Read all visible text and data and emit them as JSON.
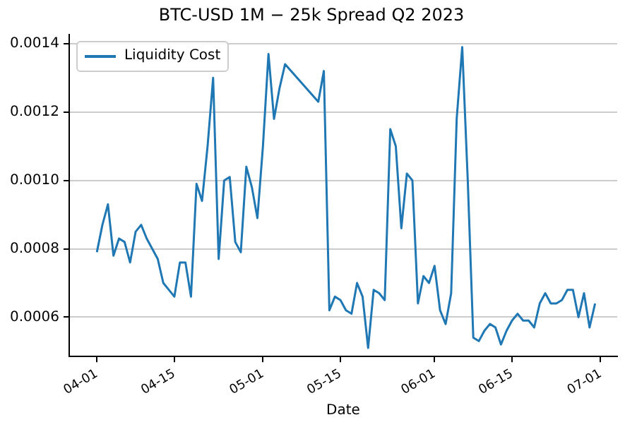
{
  "chart_data": {
    "type": "line",
    "title": "BTC-USD 1M − 25k Spread Q2 2023",
    "xlabel": "Date",
    "x": [
      "2023-04-01",
      "2023-04-02",
      "2023-04-03",
      "2023-04-04",
      "2023-04-05",
      "2023-04-06",
      "2023-04-07",
      "2023-04-08",
      "2023-04-09",
      "2023-04-10",
      "2023-04-11",
      "2023-04-12",
      "2023-04-13",
      "2023-04-14",
      "2023-04-15",
      "2023-04-16",
      "2023-04-17",
      "2023-04-18",
      "2023-04-19",
      "2023-04-20",
      "2023-04-21",
      "2023-04-22",
      "2023-04-23",
      "2023-04-24",
      "2023-04-25",
      "2023-04-26",
      "2023-04-27",
      "2023-04-28",
      "2023-04-29",
      "2023-04-30",
      "2023-05-01",
      "2023-05-02",
      "2023-05-03",
      "2023-05-04",
      "2023-05-05",
      "2023-05-11",
      "2023-05-12",
      "2023-05-13",
      "2023-05-14",
      "2023-05-15",
      "2023-05-16",
      "2023-05-17",
      "2023-05-18",
      "2023-05-19",
      "2023-05-20",
      "2023-05-21",
      "2023-05-22",
      "2023-05-23",
      "2023-05-24",
      "2023-05-25",
      "2023-05-26",
      "2023-05-27",
      "2023-05-28",
      "2023-05-29",
      "2023-05-30",
      "2023-05-31",
      "2023-06-01",
      "2023-06-02",
      "2023-06-03",
      "2023-06-04",
      "2023-06-05",
      "2023-06-06",
      "2023-06-07",
      "2023-06-08",
      "2023-06-09",
      "2023-06-10",
      "2023-06-11",
      "2023-06-12",
      "2023-06-13",
      "2023-06-14",
      "2023-06-15",
      "2023-06-16",
      "2023-06-17",
      "2023-06-18",
      "2023-06-19",
      "2023-06-20",
      "2023-06-21",
      "2023-06-22",
      "2023-06-23",
      "2023-06-24",
      "2023-06-25",
      "2023-06-26",
      "2023-06-27",
      "2023-06-28",
      "2023-06-29",
      "2023-06-30"
    ],
    "series": [
      {
        "name": "Liquidity Cost",
        "color": "#1f77b4",
        "values": [
          0.00079,
          0.00087,
          0.00093,
          0.00078,
          0.00083,
          0.00082,
          0.00076,
          0.00085,
          0.00087,
          0.00083,
          0.0008,
          0.00077,
          0.0007,
          0.00068,
          0.00066,
          0.00076,
          0.00076,
          0.00066,
          0.00099,
          0.00094,
          0.0011,
          0.0013,
          0.00077,
          0.001,
          0.00101,
          0.00082,
          0.00079,
          0.00104,
          0.00098,
          0.00089,
          0.0011,
          0.00137,
          0.00118,
          0.00127,
          0.00134,
          0.00123,
          0.00132,
          0.00062,
          0.00066,
          0.00065,
          0.00062,
          0.00061,
          0.0007,
          0.00066,
          0.00051,
          0.00068,
          0.00067,
          0.00065,
          0.00115,
          0.0011,
          0.00086,
          0.00102,
          0.001,
          0.00064,
          0.00072,
          0.0007,
          0.00075,
          0.00062,
          0.00058,
          0.00067,
          0.00118,
          0.00139,
          0.001,
          0.00054,
          0.00053,
          0.00056,
          0.00058,
          0.00057,
          0.00052,
          0.00056,
          0.00059,
          0.00061,
          0.00059,
          0.00059,
          0.00057,
          0.00064,
          0.00067,
          0.00064,
          0.00064,
          0.00065,
          0.00068,
          0.00068,
          0.0006,
          0.00067,
          0.00057,
          0.00064
        ]
      }
    ],
    "xlim": [
      "2023-03-27",
      "2023-07-04"
    ],
    "xticks": [
      {
        "value": "2023-04-01",
        "label": "04-01"
      },
      {
        "value": "2023-04-15",
        "label": "04-15"
      },
      {
        "value": "2023-05-01",
        "label": "05-01"
      },
      {
        "value": "2023-05-15",
        "label": "05-15"
      },
      {
        "value": "2023-06-01",
        "label": "06-01"
      },
      {
        "value": "2023-06-15",
        "label": "06-15"
      },
      {
        "value": "2023-07-01",
        "label": "07-01"
      }
    ],
    "ylim": [
      0.000485,
      0.001427
    ],
    "yticks": [
      0.0006,
      0.0008,
      {
        "value": 0.001,
        "label": "0.0010"
      },
      0.0012,
      0.0014
    ],
    "grid": "y",
    "legend": "top left",
    "line_style": "solid",
    "marker": "none"
  }
}
